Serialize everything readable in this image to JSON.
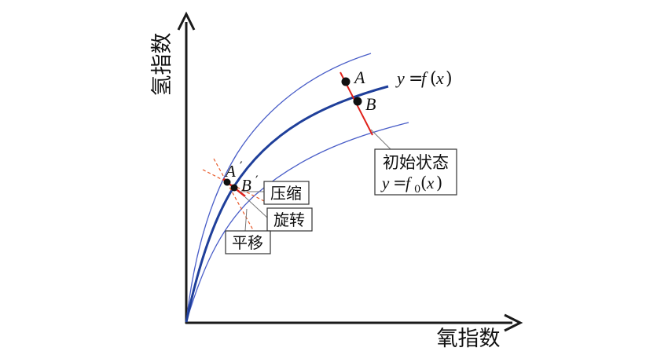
{
  "axes": {
    "y_label": "氢指数",
    "x_label": "氧指数"
  },
  "curve_label": {
    "y": "y",
    "eq": "=",
    "f": "f",
    "lp": "(",
    "x": "x",
    "rp": ")"
  },
  "points": {
    "A": "A",
    "B": "B",
    "A_prime": "A",
    "B_prime": "B",
    "prime": "′"
  },
  "boxes": {
    "initial_state": {
      "line1": "初始状态",
      "y": "y",
      "eq": "=",
      "f": "f",
      "sub": "0",
      "lp": "(",
      "x": "x",
      "rp": ")"
    },
    "compress": "压缩",
    "rotate": "旋转",
    "translate": "平移"
  },
  "colors": {
    "axis": "#1a1a1a",
    "main_curve": "#1f3f9a",
    "envelope": "#4a5ec8",
    "red_line": "#e0221b",
    "dashed": "#e85a2a",
    "point": "#111111",
    "box_border": "#333333",
    "leader": "#777777"
  }
}
